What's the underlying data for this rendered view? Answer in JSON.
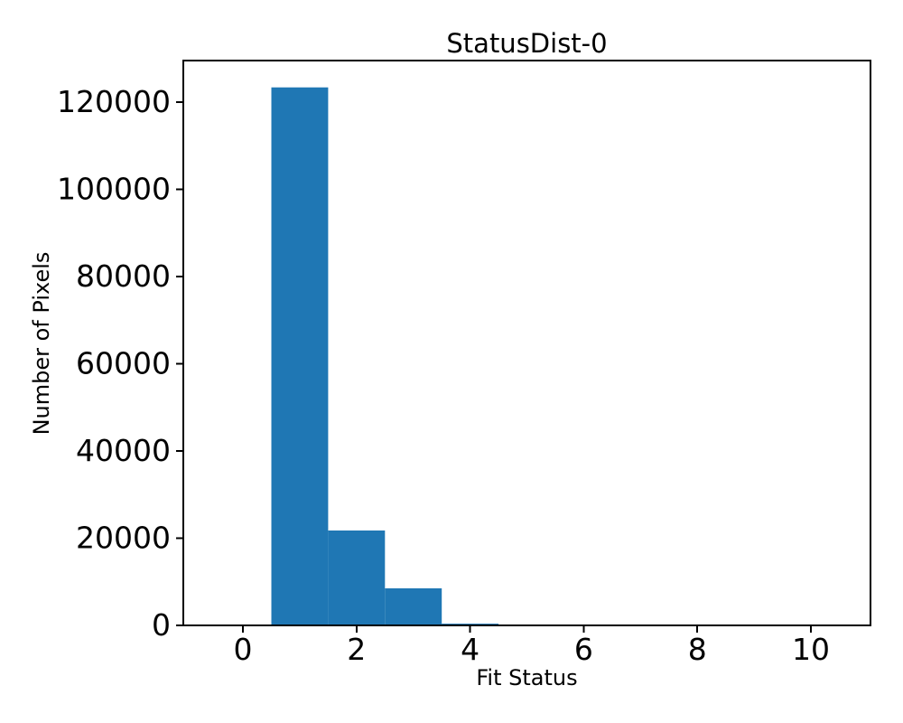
{
  "chart_data": {
    "type": "bar",
    "subtype": "histogram",
    "title": "StatusDist-0",
    "xlabel": "Fit Status",
    "ylabel": "Number of Pixels",
    "bin_centers": [
      0,
      1,
      2,
      3,
      4,
      5,
      6,
      7,
      8,
      9,
      10
    ],
    "bin_width": 1,
    "counts": [
      0,
      123350,
      21750,
      8500,
      400,
      0,
      0,
      0,
      0,
      0,
      0
    ],
    "xticks": [
      0,
      2,
      4,
      6,
      8,
      10
    ],
    "yticks": [
      0,
      20000,
      40000,
      60000,
      80000,
      100000,
      120000
    ],
    "xlim": [
      -1.05,
      11.05
    ],
    "ylim": [
      0,
      129500
    ],
    "grid": false,
    "legend": null,
    "bar_color": "#1f77b4",
    "axis_color": "#000000",
    "background_color": "#ffffff"
  }
}
